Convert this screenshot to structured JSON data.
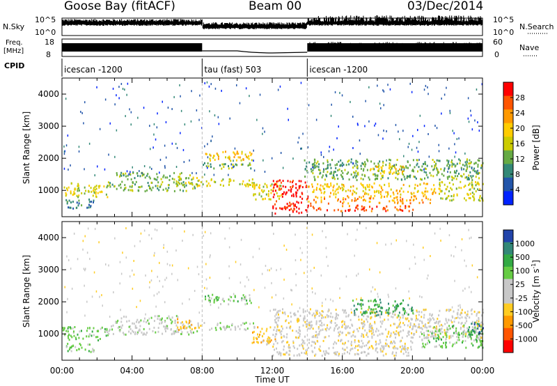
{
  "header": {
    "title_left": "Goose Bay (fitACF)",
    "title_center": "Beam 00",
    "title_right": "03/Dec/2014"
  },
  "strip_labels": {
    "nsky": "N.Sky",
    "nsky_top": "10^5",
    "nsky_bottom": "10^0",
    "nsearch": "N.Search",
    "nsearch_top": "10^5",
    "nsearch_bottom": "10^0",
    "freq": "Freq.",
    "freq_unit": "[MHz]",
    "freq_top": "18",
    "freq_bottom": "8",
    "nave": "Nave",
    "nave_top": "60",
    "nave_bottom": "0",
    "cpid": "CPID"
  },
  "cpid_segments": [
    {
      "label": "icescan -1200",
      "start_hour": 0,
      "end_hour": 8
    },
    {
      "label": "tau (fast) 503",
      "start_hour": 8,
      "end_hour": 14
    },
    {
      "label": "icescan -1200",
      "start_hour": 14,
      "end_hour": 24
    }
  ],
  "colors": {
    "strip": "#000000",
    "grid_dash": "#bbbbbb"
  },
  "chart_data": [
    {
      "type": "heatmap",
      "panel": "power",
      "ylabel": "Slant Range [km]",
      "xlabel": "",
      "xlim_hours": [
        0,
        24
      ],
      "ylim_km": [
        180,
        4500
      ],
      "x_ticks": [
        "00:00",
        "04:00",
        "08:00",
        "12:00",
        "16:00",
        "20:00",
        "00:00"
      ],
      "y_ticks": [
        1000,
        2000,
        3000,
        4000
      ],
      "colorbar": {
        "label": "Power [dB]",
        "ticks": [
          "28",
          "24",
          "20",
          "16",
          "12",
          "8",
          "4"
        ],
        "colors": [
          "#ff0000",
          "#ff5500",
          "#ff9900",
          "#ffcc00",
          "#cccc00",
          "#66aa44",
          "#338877",
          "#2255aa",
          "#0022ff"
        ]
      },
      "regions": [
        {
          "x0": 0.0,
          "x1": 2.6,
          "y0": 820,
          "y1": 1250,
          "level": 4
        },
        {
          "x0": 0.2,
          "x1": 1.8,
          "y0": 450,
          "y1": 750,
          "level": 2
        },
        {
          "x0": 2.5,
          "x1": 7.8,
          "y0": 1000,
          "y1": 1300,
          "level": 3
        },
        {
          "x0": 3.0,
          "x1": 6.8,
          "y0": 1350,
          "y1": 1600,
          "level": 3
        },
        {
          "x0": 6.5,
          "x1": 8.0,
          "y0": 1150,
          "y1": 1500,
          "level": 4
        },
        {
          "x0": 8.0,
          "x1": 10.8,
          "y0": 1950,
          "y1": 2250,
          "level": 5
        },
        {
          "x0": 8.0,
          "x1": 10.8,
          "y0": 1700,
          "y1": 1880,
          "level": 3
        },
        {
          "x0": 8.0,
          "x1": 11.0,
          "y0": 1150,
          "y1": 1380,
          "level": 4
        },
        {
          "x0": 10.8,
          "x1": 12.5,
          "y0": 700,
          "y1": 1250,
          "level": 4
        },
        {
          "x0": 12.0,
          "x1": 14.0,
          "y0": 750,
          "y1": 1350,
          "level": 8
        },
        {
          "x0": 12.0,
          "x1": 14.0,
          "y0": 300,
          "y1": 700,
          "level": 8
        },
        {
          "x0": 13.8,
          "x1": 24.0,
          "y0": 1350,
          "y1": 2000,
          "level": 3
        },
        {
          "x0": 14.0,
          "x1": 21.5,
          "y0": 900,
          "y1": 1250,
          "level": 5
        },
        {
          "x0": 14.0,
          "x1": 21.0,
          "y0": 620,
          "y1": 860,
          "level": 6
        },
        {
          "x0": 14.0,
          "x1": 20.0,
          "y0": 380,
          "y1": 560,
          "level": 7
        },
        {
          "x0": 17.5,
          "x1": 19.5,
          "y0": 1550,
          "y1": 1850,
          "level": 5
        },
        {
          "x0": 21.5,
          "x1": 24.0,
          "y0": 700,
          "y1": 1300,
          "level": 4
        }
      ]
    },
    {
      "type": "heatmap",
      "panel": "velocity",
      "ylabel": "Slant Range [km]",
      "xlabel": "Time UT",
      "xlim_hours": [
        0,
        24
      ],
      "ylim_km": [
        180,
        4500
      ],
      "x_ticks": [
        "00:00",
        "04:00",
        "08:00",
        "12:00",
        "16:00",
        "20:00",
        "00:00"
      ],
      "y_ticks": [
        1000,
        2000,
        3000,
        4000
      ],
      "colorbar": {
        "label": "Velocity [m s^-1]",
        "ticks": [
          "1000",
          "500",
          "100",
          "25",
          "-25",
          "-100",
          "-500",
          "-1000"
        ],
        "colors": [
          "#2244aa",
          "#338877",
          "#33aa44",
          "#66cc44",
          "#c8c8c8",
          "#c8c8c8",
          "#ffcc22",
          "#ff9900",
          "#ff5500",
          "#ff0000"
        ]
      },
      "regions": [
        {
          "x0": 0.0,
          "x1": 2.6,
          "y0": 820,
          "y1": 1250,
          "level": 6
        },
        {
          "x0": 0.2,
          "x1": 1.8,
          "y0": 450,
          "y1": 750,
          "level": 6
        },
        {
          "x0": 2.5,
          "x1": 7.8,
          "y0": 1000,
          "y1": 1300,
          "level": 5
        },
        {
          "x0": 3.0,
          "x1": 6.8,
          "y0": 1350,
          "y1": 1600,
          "level": 5
        },
        {
          "x0": 6.5,
          "x1": 8.0,
          "y0": 1150,
          "y1": 1500,
          "level": 3
        },
        {
          "x0": 8.0,
          "x1": 10.8,
          "y0": 1950,
          "y1": 2250,
          "level": 6
        },
        {
          "x0": 8.0,
          "x1": 11.0,
          "y0": 1150,
          "y1": 1380,
          "level": 5
        },
        {
          "x0": 10.8,
          "x1": 12.5,
          "y0": 700,
          "y1": 1250,
          "level": 3
        },
        {
          "x0": 12.0,
          "x1": 24.0,
          "y0": 900,
          "y1": 1800,
          "level": 4
        },
        {
          "x0": 12.0,
          "x1": 20.0,
          "y0": 350,
          "y1": 850,
          "level": 4
        },
        {
          "x0": 16.5,
          "x1": 20.0,
          "y0": 1600,
          "y1": 2100,
          "level": 7
        },
        {
          "x0": 20.5,
          "x1": 24.0,
          "y0": 600,
          "y1": 1300,
          "level": 6
        },
        {
          "x0": 23.0,
          "x1": 24.0,
          "y0": 1000,
          "y1": 1400,
          "level": 8
        }
      ]
    }
  ]
}
